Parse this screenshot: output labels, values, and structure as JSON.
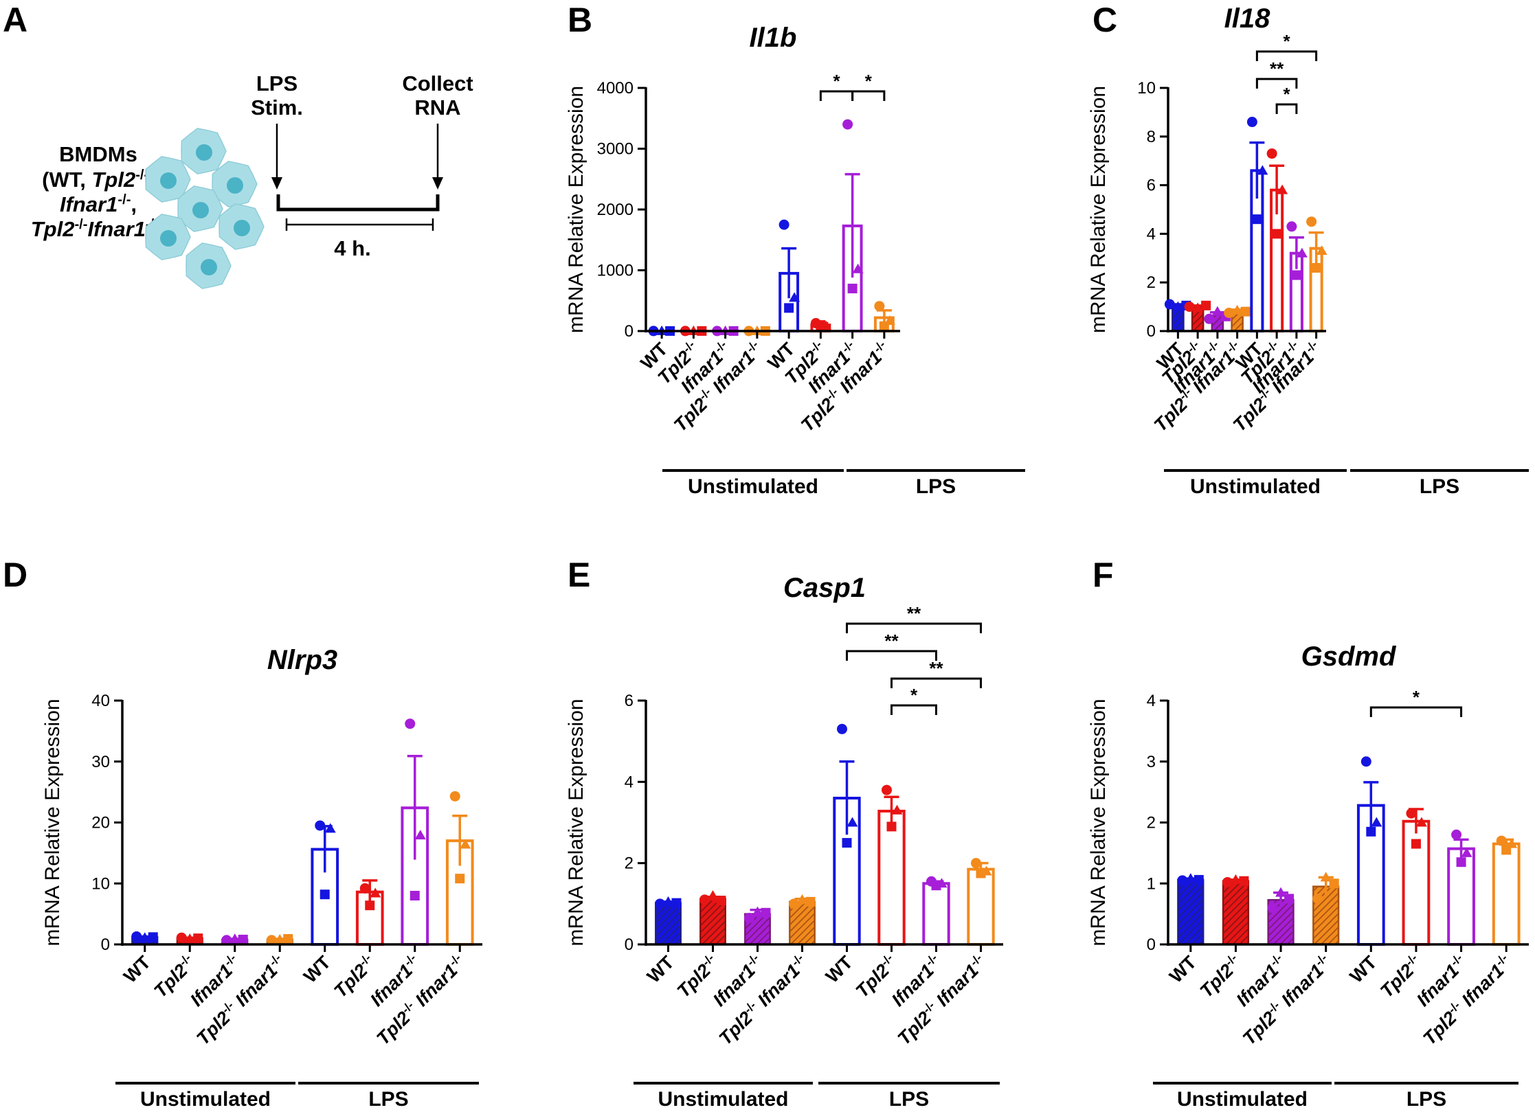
{
  "colors": {
    "WT": "#1515e0",
    "Tpl2": "#e81515",
    "Ifnar1": "#a61ed8",
    "Double": "#f28a1c",
    "WT_dark": "#1e1e8a",
    "Tpl2_dark": "#8a1414",
    "Ifnar1_dark": "#7a1a7a",
    "Double_dark": "#a85414",
    "cell_fill": "#a9dde6",
    "cell_nucleus": "#4bb3c6"
  },
  "schematic": {
    "panel_label": "A",
    "bmdms_title": "BMDMs",
    "genotype_lines": [
      [
        {
          "t": "(WT, ",
          "i": false
        },
        {
          "t": "Tpl2",
          "i": true
        },
        {
          "t": "-/-",
          "i": false,
          "sup": true
        },
        {
          "t": ",",
          "i": false
        }
      ],
      [
        {
          "t": "Ifnar1",
          "i": true
        },
        {
          "t": "-/-",
          "i": false,
          "sup": true
        },
        {
          "t": ",",
          "i": false
        }
      ],
      [
        {
          "t": "Tpl2",
          "i": true
        },
        {
          "t": "-/-",
          "i": false,
          "sup": true
        },
        {
          "t": "Ifnar1",
          "i": true
        },
        {
          "t": "-/-",
          "i": false,
          "sup": true
        },
        {
          "t": ")",
          "i": false
        }
      ]
    ],
    "lps_stim": [
      "LPS",
      "Stim."
    ],
    "collect_rna": [
      "Collect",
      "RNA"
    ],
    "duration": "4 h."
  },
  "categories": [
    {
      "name": "WT",
      "sup": ""
    },
    {
      "name": "Tpl2",
      "sup": "-/-"
    },
    {
      "name": "Ifnar1",
      "sup": "-/-"
    },
    {
      "name": "Tpl2",
      "sup": "-/-",
      "name2": "Ifnar1",
      "sup2": "-/-"
    },
    {
      "name": "WT",
      "sup": ""
    },
    {
      "name": "Tpl2",
      "sup": "-/-"
    },
    {
      "name": "Ifnar1",
      "sup": "-/-"
    },
    {
      "name": "Tpl2",
      "sup": "-/-",
      "name2": "Ifnar1",
      "sup2": "-/-"
    }
  ],
  "groups": [
    "Unstimulated",
    "LPS"
  ],
  "y_axis_label": "mRNA Relative Expression",
  "chart_data": [
    {
      "panel_label": "B",
      "title": "Il1b",
      "type": "bar",
      "ylim": [
        0,
        4000
      ],
      "yticks": [
        0,
        1000,
        2000,
        3000,
        4000
      ],
      "categories": [
        "WT",
        "Tpl2-/-",
        "Ifnar1-/-",
        "Tpl2-/- Ifnar1-/-",
        "WT",
        "Tpl2-/-",
        "Ifnar1-/-",
        "Tpl2-/- Ifnar1-/-"
      ],
      "groups": [
        "Unstimulated",
        "LPS"
      ],
      "values": [
        1,
        1,
        1,
        1,
        950,
        100,
        1730,
        220
      ],
      "errors": [
        0,
        0,
        0,
        0,
        410,
        30,
        850,
        120
      ],
      "points": [
        [
          1,
          1,
          1
        ],
        [
          1,
          1,
          1
        ],
        [
          1,
          1,
          1
        ],
        [
          1,
          1,
          1
        ],
        [
          1750,
          550,
          380
        ],
        [
          130,
          80,
          100
        ],
        [
          3400,
          1020,
          700
        ],
        [
          410,
          170,
          80
        ]
      ],
      "significance": [
        {
          "from": 6,
          "to": 5,
          "label": "*"
        },
        {
          "from": 6,
          "to": 7,
          "label": "*"
        }
      ]
    },
    {
      "panel_label": "C",
      "title": "Il18",
      "type": "bar",
      "ylim": [
        0,
        10
      ],
      "yticks": [
        0,
        2,
        4,
        6,
        8,
        10
      ],
      "categories": [
        "WT",
        "Tpl2-/-",
        "Ifnar1-/-",
        "Tpl2-/- Ifnar1-/-",
        "WT",
        "Tpl2-/-",
        "Ifnar1-/-",
        "Tpl2-/- Ifnar1-/-"
      ],
      "groups": [
        "Unstimulated",
        "LPS"
      ],
      "values": [
        1.05,
        1.0,
        0.65,
        0.8,
        6.6,
        5.8,
        3.2,
        3.4
      ],
      "errors": [
        0.05,
        0.05,
        0.12,
        0.08,
        1.15,
        1.0,
        0.65,
        0.65
      ],
      "points": [
        [
          1.1,
          1.0,
          1.05
        ],
        [
          1.0,
          0.95,
          1.05
        ],
        [
          0.5,
          0.8,
          0.6
        ],
        [
          0.75,
          0.85,
          0.8
        ],
        [
          8.6,
          6.6,
          4.6
        ],
        [
          7.3,
          5.8,
          4.0
        ],
        [
          4.3,
          3.2,
          2.3
        ],
        [
          4.5,
          3.3,
          2.6
        ]
      ],
      "significance": [
        {
          "from": 4,
          "to": 7,
          "label": "*"
        },
        {
          "from": 4,
          "to": 6,
          "label": "**"
        },
        {
          "from": 5,
          "to": 6,
          "label": "*"
        }
      ]
    },
    {
      "panel_label": "D",
      "title": "Nlrp3",
      "type": "bar",
      "ylim": [
        0,
        40
      ],
      "yticks": [
        0,
        10,
        20,
        30,
        40
      ],
      "categories": [
        "WT",
        "Tpl2-/-",
        "Ifnar1-/-",
        "Tpl2-/- Ifnar1-/-",
        "WT",
        "Tpl2-/-",
        "Ifnar1-/-",
        "Tpl2-/- Ifnar1-/-"
      ],
      "groups": [
        "Unstimulated",
        "LPS"
      ],
      "values": [
        1.2,
        1.0,
        0.8,
        0.8,
        15.6,
        8.6,
        22.4,
        17.0
      ],
      "errors": [
        0.1,
        0.1,
        0.1,
        0.1,
        3.8,
        1.9,
        8.5,
        4.1
      ],
      "points": [
        [
          1.3,
          1.1,
          1.2
        ],
        [
          1.1,
          0.9,
          1.0
        ],
        [
          0.7,
          0.9,
          0.8
        ],
        [
          0.7,
          0.8,
          0.9
        ],
        [
          19.5,
          19.0,
          8.2
        ],
        [
          9.2,
          8.4,
          6.4
        ],
        [
          36.2,
          17.9,
          8.0
        ],
        [
          24.3,
          16.4,
          10.8
        ]
      ],
      "significance": []
    },
    {
      "panel_label": "E",
      "title": "Casp1",
      "type": "bar",
      "ylim": [
        0,
        6
      ],
      "yticks": [
        0,
        2,
        4,
        6
      ],
      "categories": [
        "WT",
        "Tpl2-/-",
        "Ifnar1-/-",
        "Tpl2-/- Ifnar1-/-",
        "WT",
        "Tpl2-/-",
        "Ifnar1-/-",
        "Tpl2-/- Ifnar1-/-"
      ],
      "groups": [
        "Unstimulated",
        "LPS"
      ],
      "values": [
        1.02,
        1.12,
        0.75,
        1.05,
        3.6,
        3.28,
        1.5,
        1.85
      ],
      "errors": [
        0.03,
        0.05,
        0.1,
        0.07,
        0.9,
        0.35,
        0.05,
        0.15
      ],
      "points": [
        [
          1.0,
          1.05,
          1.02
        ],
        [
          1.1,
          1.2,
          1.08
        ],
        [
          0.65,
          0.8,
          0.78
        ],
        [
          1.0,
          1.1,
          1.05
        ],
        [
          5.3,
          3.0,
          2.5
        ],
        [
          3.8,
          3.3,
          2.9
        ],
        [
          1.55,
          1.5,
          1.45
        ],
        [
          2.0,
          1.8,
          1.75
        ]
      ],
      "significance": [
        {
          "from": 4,
          "to": 7,
          "label": "**"
        },
        {
          "from": 4,
          "to": 6,
          "label": "**"
        },
        {
          "from": 5,
          "to": 7,
          "label": "**"
        },
        {
          "from": 5,
          "to": 6,
          "label": "*"
        }
      ]
    },
    {
      "panel_label": "F",
      "title": "Gsdmd",
      "type": "bar",
      "ylim": [
        0,
        4
      ],
      "yticks": [
        0,
        1,
        2,
        3,
        4
      ],
      "categories": [
        "WT",
        "Tpl2-/-",
        "Ifnar1-/-",
        "Tpl2-/- Ifnar1-/-",
        "WT",
        "Tpl2-/-",
        "Ifnar1-/-",
        "Tpl2-/- Ifnar1-/-"
      ],
      "groups": [
        "Unstimulated",
        "LPS"
      ],
      "values": [
        1.06,
        1.04,
        0.73,
        0.95,
        2.28,
        2.02,
        1.57,
        1.65
      ],
      "errors": [
        0.02,
        0.02,
        0.12,
        0.15,
        0.38,
        0.2,
        0.15,
        0.07
      ],
      "points": [
        [
          1.05,
          1.08,
          1.06
        ],
        [
          1.02,
          1.06,
          1.04
        ],
        [
          0.6,
          0.85,
          0.75
        ],
        [
          0.75,
          1.1,
          1.0
        ],
        [
          3.0,
          2.0,
          1.85
        ],
        [
          2.15,
          2.0,
          1.65
        ],
        [
          1.8,
          1.5,
          1.35
        ],
        [
          1.7,
          1.65,
          1.55
        ]
      ],
      "significance": [
        {
          "from": 4,
          "to": 6,
          "label": "*"
        }
      ]
    }
  ]
}
